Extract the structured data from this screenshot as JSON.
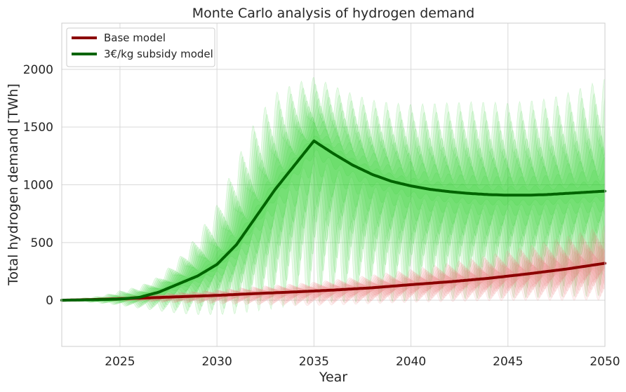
{
  "chart_data": {
    "type": "line",
    "title": "Monte Carlo analysis of hydrogen demand",
    "xlabel": "Year",
    "ylabel": "Total hydrogen demand [TWh]",
    "xlim": [
      2022,
      2050
    ],
    "ylim": [
      -400,
      2400
    ],
    "xticks": [
      2025,
      2030,
      2035,
      2040,
      2045,
      2050
    ],
    "yticks": [
      0,
      500,
      1000,
      1500,
      2000
    ],
    "grid": true,
    "legend_position": "top-left",
    "series": [
      {
        "name": "Base model",
        "color": "#8b0000",
        "x": [
          2022,
          2024,
          2026,
          2028,
          2030,
          2032,
          2034,
          2035,
          2036,
          2038,
          2040,
          2042,
          2044,
          2046,
          2048,
          2050
        ],
        "y": [
          0,
          8,
          18,
          30,
          42,
          58,
          72,
          80,
          88,
          108,
          135,
          160,
          190,
          228,
          270,
          320
        ],
        "band": {
          "color": "#f08080",
          "low": [
            0,
            -5,
            -15,
            -30,
            -40,
            -50,
            -60,
            -60,
            -55,
            -45,
            -35,
            -30,
            -25,
            -25,
            -30,
            -30
          ],
          "high": [
            0,
            20,
            45,
            70,
            95,
            125,
            150,
            165,
            185,
            230,
            280,
            340,
            410,
            490,
            580,
            680
          ]
        }
      },
      {
        "name": "3€/kg subsidy model",
        "color": "#006400",
        "x": [
          2022,
          2024,
          2025,
          2026,
          2027,
          2028,
          2029,
          2030,
          2031,
          2032,
          2033,
          2034,
          2035,
          2036,
          2037,
          2038,
          2039,
          2040,
          2041,
          2042,
          2043,
          2044,
          2045,
          2046,
          2047,
          2048,
          2049,
          2050
        ],
        "y": [
          0,
          5,
          10,
          25,
          70,
          140,
          210,
          310,
          480,
          720,
          960,
          1170,
          1380,
          1270,
          1170,
          1090,
          1030,
          990,
          960,
          940,
          925,
          915,
          910,
          910,
          915,
          925,
          935,
          945
        ],
        "band": {
          "color": "#32cd32",
          "low": [
            0,
            -30,
            -50,
            -80,
            -110,
            -140,
            -160,
            -170,
            -180,
            -180,
            -180,
            -170,
            -160,
            -150,
            -140,
            -130,
            -120,
            -110,
            -100,
            -90,
            -80,
            -80,
            -70,
            -70,
            -70,
            -60,
            -60,
            -50
          ],
          "high": [
            0,
            40,
            90,
            130,
            220,
            380,
            600,
            880,
            1280,
            1650,
            1880,
            1950,
            1990,
            1920,
            1850,
            1800,
            1780,
            1770,
            1780,
            1790,
            1800,
            1800,
            1790,
            1810,
            1830,
            1880,
            1950,
            2020
          ]
        }
      }
    ]
  }
}
